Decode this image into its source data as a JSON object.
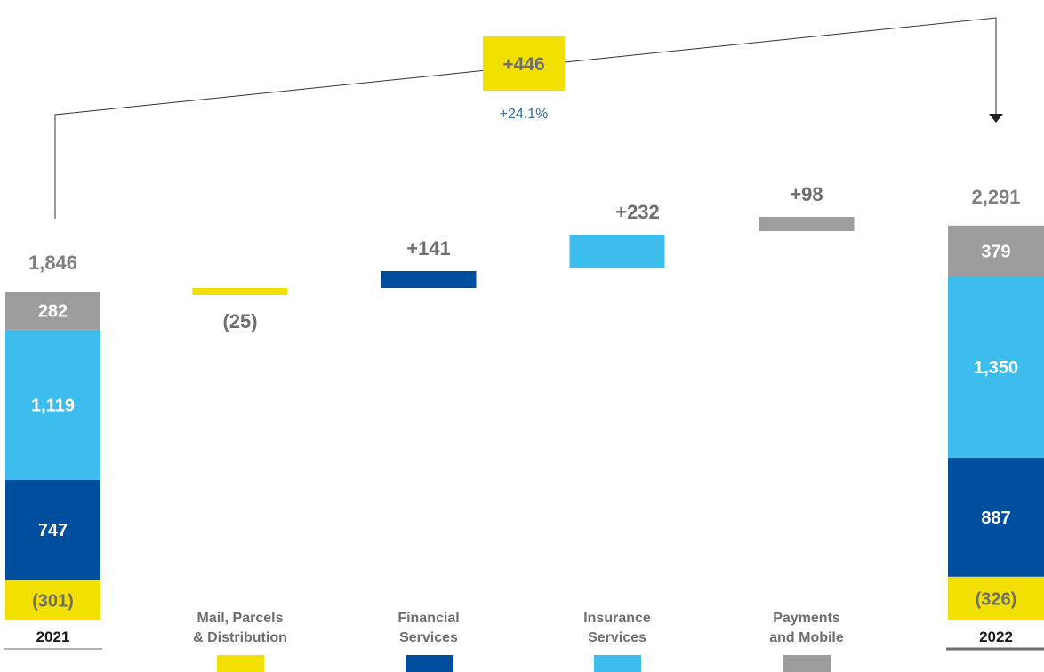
{
  "colors": {
    "mail": "#f2e000",
    "financial": "#004e9e",
    "insurance": "#3dbdee",
    "payments": "#9d9d9d",
    "text_gray": "#6e6e6e",
    "percent_blue": "#2f6ea5"
  },
  "chart_data": {
    "type": "bar",
    "subtype": "waterfall",
    "title": "",
    "xlabel": "",
    "ylabel": "",
    "start": {
      "label": "2021",
      "total_label": "1,846",
      "total": 1846,
      "segments": [
        {
          "category": "Mail, Parcels & Distribution",
          "value": -301,
          "label": "(301)"
        },
        {
          "category": "Financial Services",
          "value": 747,
          "label": "747"
        },
        {
          "category": "Insurance Services",
          "value": 1119,
          "label": "1,119"
        },
        {
          "category": "Payments and Mobile",
          "value": 282,
          "label": "282"
        }
      ]
    },
    "changes": [
      {
        "category": "Mail, Parcels & Distribution",
        "legend_lines": [
          "Mail, Parcels",
          "& Distribution"
        ],
        "value": -25,
        "label": "(25)"
      },
      {
        "category": "Financial Services",
        "legend_lines": [
          "Financial",
          "Services"
        ],
        "value": 141,
        "label": "+141"
      },
      {
        "category": "Insurance Services",
        "legend_lines": [
          "Insurance",
          "Services"
        ],
        "value": 232,
        "label": "+232"
      },
      {
        "category": "Payments and Mobile",
        "legend_lines": [
          "Payments",
          "and Mobile"
        ],
        "value": 98,
        "label": "+98"
      }
    ],
    "end": {
      "label": "2022",
      "total_label": "2,291",
      "total": 2291,
      "segments": [
        {
          "category": "Mail, Parcels & Distribution",
          "value": -326,
          "label": "(326)"
        },
        {
          "category": "Financial Services",
          "value": 887,
          "label": "887"
        },
        {
          "category": "Insurance Services",
          "value": 1350,
          "label": "1,350"
        },
        {
          "category": "Payments and Mobile",
          "value": 379,
          "label": "379"
        }
      ]
    },
    "overall_change": {
      "value": 446,
      "label": "+446",
      "percent_label": "+24.1%"
    }
  }
}
